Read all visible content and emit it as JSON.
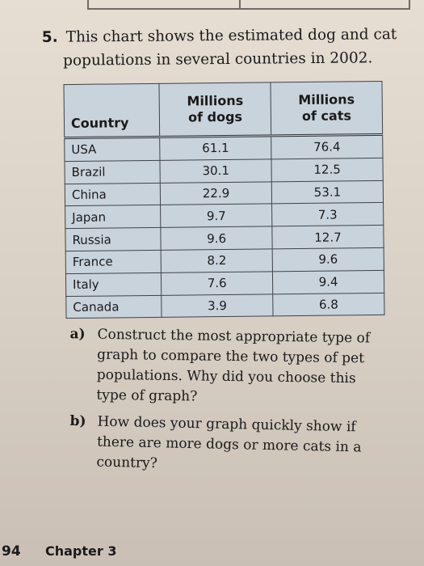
{
  "question": {
    "number": "5.",
    "line1": "This chart shows the estimated dog and cat",
    "line2": "populations in several countries in 2002."
  },
  "table": {
    "headers": {
      "country": "Country",
      "dogs_line1": "Millions",
      "dogs_line2": "of dogs",
      "cats_line1": "Millions",
      "cats_line2": "of cats"
    },
    "rows": [
      {
        "country": "USA",
        "dogs": "61.1",
        "cats": "76.4"
      },
      {
        "country": "Brazil",
        "dogs": "30.1",
        "cats": "12.5"
      },
      {
        "country": "China",
        "dogs": "22.9",
        "cats": "53.1"
      },
      {
        "country": "Japan",
        "dogs": "9.7",
        "cats": "7.3"
      },
      {
        "country": "Russia",
        "dogs": "9.6",
        "cats": "12.7"
      },
      {
        "country": "France",
        "dogs": "8.2",
        "cats": "9.6"
      },
      {
        "country": "Italy",
        "dogs": "7.6",
        "cats": "9.4"
      },
      {
        "country": "Canada",
        "dogs": "3.9",
        "cats": "6.8"
      }
    ]
  },
  "part_a": {
    "label": "a)",
    "line1": "Construct the most appropriate type of",
    "line2": "graph to compare the two types of pet",
    "line3": "populations. Why did you choose this",
    "line4": "type of graph?"
  },
  "part_b": {
    "label": "b)",
    "line1": "How does your graph quickly show if",
    "line2": "there are more dogs or more cats in a",
    "line3": "country?"
  },
  "footer": {
    "page_number": "94",
    "chapter": "Chapter 3"
  }
}
